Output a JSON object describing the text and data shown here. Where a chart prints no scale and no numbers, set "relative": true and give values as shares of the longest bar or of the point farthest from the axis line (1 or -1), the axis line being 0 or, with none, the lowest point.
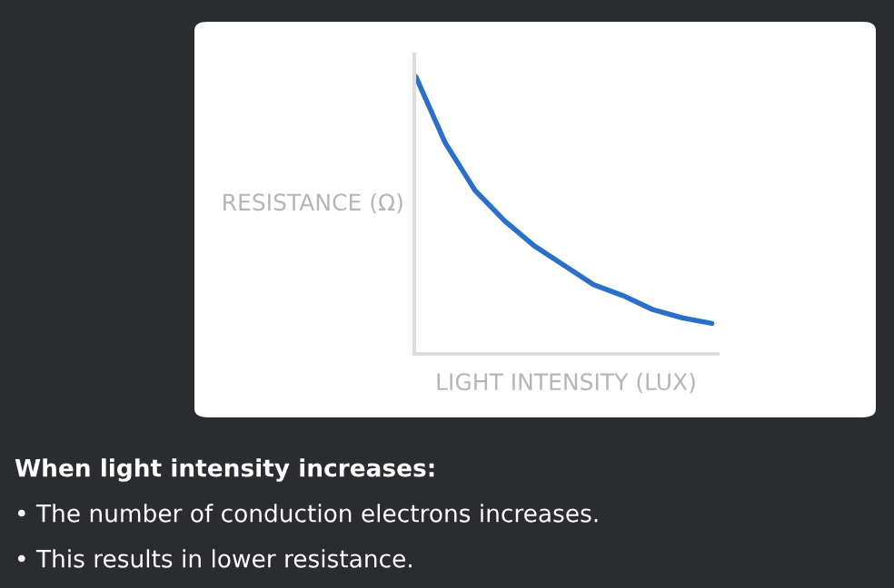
{
  "chart_data": {
    "type": "line",
    "relative": true,
    "xlabel": "LIGHT INTENSITY (LUX)",
    "ylabel": "RESISTANCE (Ω)",
    "categories": [
      null,
      null,
      null,
      null,
      null,
      null,
      null,
      null,
      null,
      null,
      null
    ],
    "series": [
      {
        "color": "#2a6fc9",
        "values": [
          1,
          0.76,
          0.59,
          0.48,
          0.39,
          0.32,
          0.25,
          0.21,
          0.16,
          0.13,
          0.11
        ]
      }
    ],
    "legend": false,
    "annotations": [
      "When light intensity increases:",
      "• The number of conduction electrons increases.",
      "• This results in lower resistance."
    ]
  }
}
